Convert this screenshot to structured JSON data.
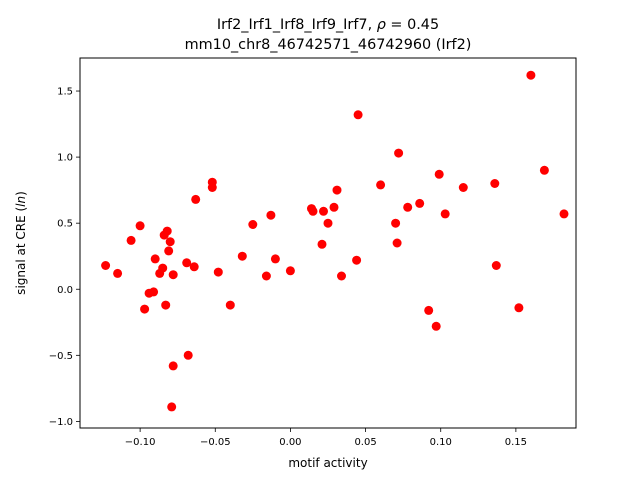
{
  "chart_data": {
    "type": "scatter",
    "title_line1_prefix": "Irf2_Irf1_Irf8_Irf9_Irf7, ",
    "title_rho_symbol": "ρ",
    "title_line1_suffix": " = 0.45",
    "title_line2": "mm10_chr8_46742571_46742960 (Irf2)",
    "xlabel": "motif activity",
    "ylabel_prefix": "signal at CRE (",
    "ylabel_italic": "ln",
    "ylabel_suffix": ")",
    "xlim": [
      -0.14,
      0.19
    ],
    "ylim": [
      -1.05,
      1.75
    ],
    "xticks": [
      {
        "value": -0.1,
        "label": "−0.10"
      },
      {
        "value": -0.05,
        "label": "−0.05"
      },
      {
        "value": 0.0,
        "label": "0.00"
      },
      {
        "value": 0.05,
        "label": "0.05"
      },
      {
        "value": 0.1,
        "label": "0.10"
      },
      {
        "value": 0.15,
        "label": "0.15"
      }
    ],
    "yticks": [
      {
        "value": -1.0,
        "label": "−1.0"
      },
      {
        "value": -0.5,
        "label": "−0.5"
      },
      {
        "value": 0.0,
        "label": "0.0"
      },
      {
        "value": 0.5,
        "label": "0.5"
      },
      {
        "value": 1.0,
        "label": "1.0"
      },
      {
        "value": 1.5,
        "label": "1.5"
      }
    ],
    "grid": false,
    "marker_color": "#ff0000",
    "points": [
      {
        "x": -0.123,
        "y": 0.18
      },
      {
        "x": -0.115,
        "y": 0.12
      },
      {
        "x": -0.106,
        "y": 0.37
      },
      {
        "x": -0.1,
        "y": 0.48
      },
      {
        "x": -0.097,
        "y": -0.15
      },
      {
        "x": -0.094,
        "y": -0.03
      },
      {
        "x": -0.091,
        "y": -0.02
      },
      {
        "x": -0.09,
        "y": 0.23
      },
      {
        "x": -0.087,
        "y": 0.12
      },
      {
        "x": -0.085,
        "y": 0.16
      },
      {
        "x": -0.084,
        "y": 0.41
      },
      {
        "x": -0.083,
        "y": -0.12
      },
      {
        "x": -0.082,
        "y": 0.44
      },
      {
        "x": -0.081,
        "y": 0.29
      },
      {
        "x": -0.08,
        "y": 0.36
      },
      {
        "x": -0.079,
        "y": -0.89
      },
      {
        "x": -0.078,
        "y": -0.58
      },
      {
        "x": -0.078,
        "y": 0.11
      },
      {
        "x": -0.069,
        "y": 0.2
      },
      {
        "x": -0.068,
        "y": -0.5
      },
      {
        "x": -0.064,
        "y": 0.17
      },
      {
        "x": -0.063,
        "y": 0.68
      },
      {
        "x": -0.052,
        "y": 0.81
      },
      {
        "x": -0.052,
        "y": 0.77
      },
      {
        "x": -0.048,
        "y": 0.13
      },
      {
        "x": -0.04,
        "y": -0.12
      },
      {
        "x": -0.032,
        "y": 0.25
      },
      {
        "x": -0.025,
        "y": 0.49
      },
      {
        "x": -0.016,
        "y": 0.1
      },
      {
        "x": -0.013,
        "y": 0.56
      },
      {
        "x": -0.01,
        "y": 0.23
      },
      {
        "x": 0.0,
        "y": 0.14
      },
      {
        "x": 0.014,
        "y": 0.61
      },
      {
        "x": 0.015,
        "y": 0.59
      },
      {
        "x": 0.021,
        "y": 0.34
      },
      {
        "x": 0.022,
        "y": 0.59
      },
      {
        "x": 0.025,
        "y": 0.5
      },
      {
        "x": 0.029,
        "y": 0.62
      },
      {
        "x": 0.031,
        "y": 0.75
      },
      {
        "x": 0.034,
        "y": 0.1
      },
      {
        "x": 0.044,
        "y": 0.22
      },
      {
        "x": 0.045,
        "y": 1.32
      },
      {
        "x": 0.06,
        "y": 0.79
      },
      {
        "x": 0.07,
        "y": 0.5
      },
      {
        "x": 0.071,
        "y": 0.35
      },
      {
        "x": 0.072,
        "y": 1.03
      },
      {
        "x": 0.078,
        "y": 0.62
      },
      {
        "x": 0.086,
        "y": 0.65
      },
      {
        "x": 0.092,
        "y": -0.16
      },
      {
        "x": 0.097,
        "y": -0.28
      },
      {
        "x": 0.099,
        "y": 0.87
      },
      {
        "x": 0.103,
        "y": 0.57
      },
      {
        "x": 0.115,
        "y": 0.77
      },
      {
        "x": 0.136,
        "y": 0.8
      },
      {
        "x": 0.137,
        "y": 0.18
      },
      {
        "x": 0.152,
        "y": -0.14
      },
      {
        "x": 0.16,
        "y": 1.62
      },
      {
        "x": 0.169,
        "y": 0.9
      },
      {
        "x": 0.182,
        "y": 0.57
      }
    ]
  }
}
